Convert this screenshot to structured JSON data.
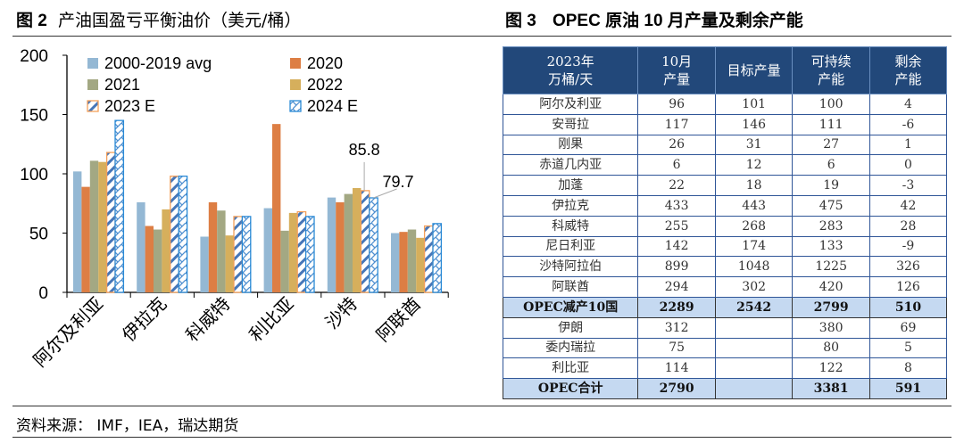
{
  "left_title": {
    "fig": "图 2",
    "text": "产油国盈亏平衡油价（美元/桶）"
  },
  "right_title": {
    "fig": "图 3",
    "text": "OPEC 原油 10 月产量及剩余产能"
  },
  "source": "资料来源：  IMF，IEA，瑞达期货",
  "colors": {
    "s2000": "#94b8d4",
    "s2020": "#dd7e44",
    "s2021": "#a3a883",
    "s2022": "#d6af5c",
    "hatch2023": "#4676b8",
    "border2023": "#f5a05a",
    "s2024": "#2a8ad6"
  },
  "chart_data": {
    "type": "bar",
    "title": "产油国盈亏平衡油价（美元/桶）",
    "categories": [
      "阿尔及利亚",
      "伊拉克",
      "科威特",
      "利比亚",
      "沙特",
      "阿联酋"
    ],
    "ylim": [
      0,
      200
    ],
    "yticks": [
      "0",
      "50",
      "100",
      "150",
      "200"
    ],
    "legend_position": "top",
    "series": [
      {
        "name": "2000-2019 avg",
        "values": [
          102,
          76,
          47,
          71,
          80,
          50
        ]
      },
      {
        "name": "2020",
        "values": [
          89,
          56,
          76,
          142,
          76,
          51
        ]
      },
      {
        "name": "2021",
        "values": [
          111,
          53,
          69,
          52,
          83,
          53
        ]
      },
      {
        "name": "2022",
        "values": [
          110,
          70,
          48,
          67,
          88,
          46
        ]
      },
      {
        "name": "2023 E",
        "values": [
          118,
          98,
          64,
          68,
          85.8,
          56
        ]
      },
      {
        "name": "2024 E",
        "values": [
          145,
          98,
          64,
          64,
          79.7,
          58
        ]
      }
    ],
    "annotations": [
      "85.8",
      "79.7"
    ]
  },
  "table": {
    "headers": [
      "2023年\n万桶/天",
      "10月\n产量",
      "目标产量",
      "可持续\n产能",
      "剩余\n产能"
    ],
    "rows": [
      {
        "cells": [
          "阿尔及利亚",
          "96",
          "101",
          "100",
          "4"
        ]
      },
      {
        "cells": [
          "安哥拉",
          "117",
          "146",
          "111",
          "-6"
        ]
      },
      {
        "cells": [
          "刚果",
          "26",
          "31",
          "27",
          "1"
        ]
      },
      {
        "cells": [
          "赤道几内亚",
          "6",
          "12",
          "6",
          "0"
        ]
      },
      {
        "cells": [
          "加蓬",
          "22",
          "18",
          "19",
          "-3"
        ]
      },
      {
        "cells": [
          "伊拉克",
          "433",
          "443",
          "475",
          "42"
        ]
      },
      {
        "cells": [
          "科威特",
          "255",
          "268",
          "283",
          "28"
        ]
      },
      {
        "cells": [
          "尼日利亚",
          "142",
          "174",
          "133",
          "-9"
        ]
      },
      {
        "cells": [
          "沙特阿拉伯",
          "899",
          "1048",
          "1225",
          "326"
        ]
      },
      {
        "cells": [
          "阿联酋",
          "294",
          "302",
          "420",
          "126"
        ]
      },
      {
        "cells": [
          "OPEC减产10国",
          "2289",
          "2542",
          "2799",
          "510"
        ],
        "sum": true
      },
      {
        "cells": [
          "伊朗",
          "312",
          "",
          "380",
          "69"
        ]
      },
      {
        "cells": [
          "委内瑞拉",
          "75",
          "",
          "80",
          "5"
        ]
      },
      {
        "cells": [
          "利比亚",
          "114",
          "",
          "122",
          "8"
        ]
      },
      {
        "cells": [
          "OPEC合计",
          "2790",
          "",
          "3381",
          "591"
        ],
        "sum": true
      }
    ]
  }
}
